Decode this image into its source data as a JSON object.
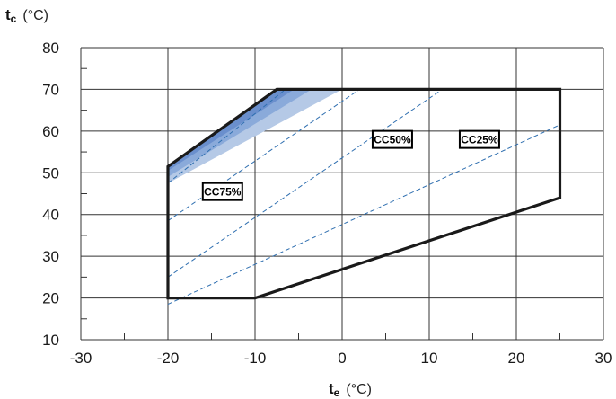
{
  "chart_data": {
    "type": "area",
    "xlabel": {
      "symbol": "t",
      "subscript": "e",
      "unit": "(°C)"
    },
    "ylabel": {
      "symbol": "t",
      "subscript": "c",
      "unit": "(°C)"
    },
    "xlim": [
      -30,
      30
    ],
    "ylim": [
      10,
      80
    ],
    "x_ticks": [
      -30,
      -20,
      -10,
      0,
      10,
      20,
      30
    ],
    "y_ticks": [
      10,
      20,
      30,
      40,
      50,
      60,
      70,
      80
    ],
    "grid": true,
    "envelope": [
      [
        -20,
        20
      ],
      [
        -20,
        51.5
      ],
      [
        -7.5,
        70
      ],
      [
        25,
        70
      ],
      [
        25,
        44
      ],
      [
        -10,
        20
      ]
    ],
    "capacity_lines": [
      {
        "name": "CC75%",
        "points": [
          [
            -20,
            47.5
          ],
          [
            -6.5,
            70
          ]
        ],
        "label_at": [
          -16,
          45.5
        ]
      },
      {
        "name": "CC50%",
        "points": [
          [
            -20,
            38.5
          ],
          [
            2,
            70
          ]
        ],
        "label_at": [
          3.5,
          58
        ]
      },
      {
        "name": "CC25%",
        "points": [
          [
            -20,
            25
          ],
          [
            11.5,
            70
          ]
        ],
        "label_at": [
          13.5,
          58
        ]
      },
      {
        "name": "",
        "points": [
          [
            -20,
            18.5
          ],
          [
            25,
            61.5
          ]
        ]
      }
    ],
    "shaded_regions": [
      {
        "points": [
          [
            -20,
            47.5
          ],
          [
            -20,
            51.5
          ],
          [
            -7.5,
            70
          ],
          [
            0,
            70
          ]
        ],
        "color": "#b5c9e6"
      },
      {
        "points": [
          [
            -20,
            49
          ],
          [
            -20,
            51.5
          ],
          [
            -7.5,
            70
          ],
          [
            -3.5,
            70
          ]
        ],
        "color": "#8aaada"
      },
      {
        "points": [
          [
            -20,
            50.5
          ],
          [
            -20,
            51.5
          ],
          [
            -7.5,
            70
          ],
          [
            -5.5,
            70
          ]
        ],
        "color": "#6a8fcd"
      }
    ],
    "colors": {
      "envelope": "#1a1a1a",
      "capacity_line": "#2f6fb0",
      "grid": "#333333"
    }
  }
}
